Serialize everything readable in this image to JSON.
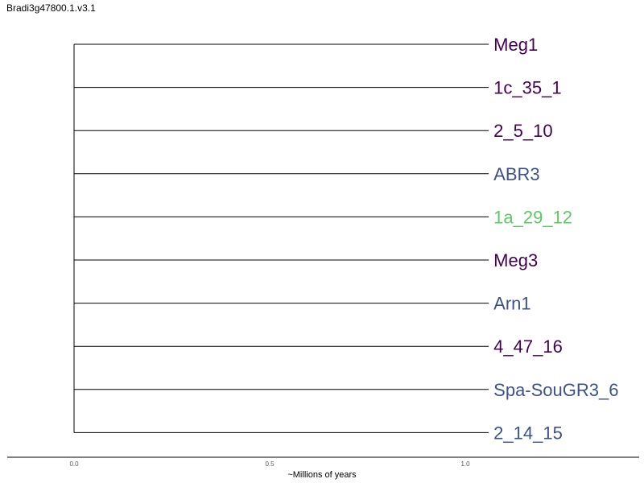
{
  "title": "Bradi3g47800.1.v3.1",
  "colors": {
    "dark_purple": "#440154",
    "blue": "#3b528b",
    "green": "#5ec962",
    "line": "#000000"
  },
  "chart_data": {
    "type": "dendrogram",
    "tips": [
      {
        "label": "Meg1",
        "color": "#440154",
        "branch_length": 1.06
      },
      {
        "label": "1c_35_1",
        "color": "#440154",
        "branch_length": 1.06
      },
      {
        "label": "2_5_10",
        "color": "#440154",
        "branch_length": 1.06
      },
      {
        "label": "ABR3",
        "color": "#3b528b",
        "branch_length": 1.06
      },
      {
        "label": "1a_29_12",
        "color": "#5ec962",
        "branch_length": 1.06
      },
      {
        "label": "Meg3",
        "color": "#440154",
        "branch_length": 1.06
      },
      {
        "label": "Arn1",
        "color": "#3b528b",
        "branch_length": 1.06
      },
      {
        "label": "4_47_16",
        "color": "#440154",
        "branch_length": 1.06
      },
      {
        "label": "Spa-SouGR3_6",
        "color": "#3b528b",
        "branch_length": 1.06
      },
      {
        "label": "2_14_15",
        "color": "#3b528b",
        "branch_length": 1.06
      }
    ],
    "x_ticks": [
      {
        "value": 0.0,
        "label": "0.0"
      },
      {
        "value": 0.5,
        "label": "0.5"
      },
      {
        "value": 1.0,
        "label": "1.0"
      }
    ],
    "xlabel": "~Millions of years"
  }
}
